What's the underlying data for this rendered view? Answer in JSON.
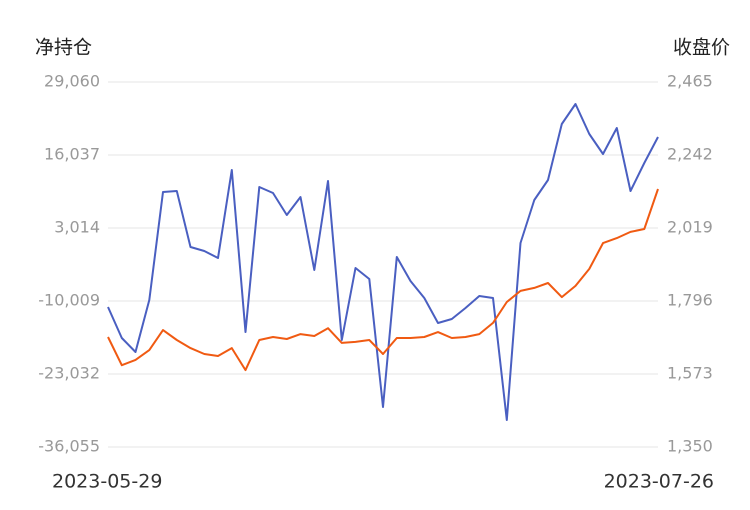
{
  "chart_data": {
    "type": "line",
    "y_label": "净持仓",
    "y2_label": "收盘价",
    "categories": [
      "2023-05-29",
      null,
      null,
      null,
      null,
      null,
      null,
      null,
      null,
      null,
      null,
      null,
      null,
      null,
      null,
      null,
      null,
      null,
      null,
      null,
      null,
      null,
      null,
      null,
      null,
      null,
      null,
      null,
      null,
      null,
      null,
      null,
      null,
      null,
      null,
      null,
      null,
      null,
      null,
      null,
      "2023-07-26"
    ],
    "ylim": [
      -36055,
      29060
    ],
    "yticks": [
      {
        "value": -36055,
        "label": "-36,055"
      },
      {
        "value": -23032,
        "label": "-23,032"
      },
      {
        "value": -10009,
        "label": "-10,009"
      },
      {
        "value": 3014,
        "label": "3,014"
      },
      {
        "value": 16037,
        "label": "16,037"
      },
      {
        "value": 29060,
        "label": "29,060"
      }
    ],
    "y2lim": [
      1350,
      2465
    ],
    "y2ticks": [
      {
        "value": 1350,
        "label": "1,350"
      },
      {
        "value": 1573,
        "label": "1,573"
      },
      {
        "value": 1796,
        "label": "1,796"
      },
      {
        "value": 2019,
        "label": "2,019"
      },
      {
        "value": 2242,
        "label": "2,242"
      },
      {
        "value": 2465,
        "label": "2,465"
      }
    ],
    "grid": true,
    "series": [
      {
        "color": "#4a5fc1",
        "values": [
          -11080,
          -16610,
          -19108,
          -9831,
          9436,
          9614,
          -377,
          -1090,
          -2338,
          13361,
          -15540,
          10328,
          9258,
          5333,
          8544,
          -4479,
          11398,
          -16967,
          -4122,
          -6084,
          -28920,
          -2160,
          -6442,
          -9475,
          -13934,
          -13221,
          -11258,
          -9118,
          -9475,
          -31239,
          336,
          8008,
          11576,
          21567,
          25135,
          19783,
          16216,
          20854,
          9614,
          14610,
          19248
        ]
      },
      {
        "color": "#f05a12",
        "axis": "y2",
        "values": [
          1686,
          1600,
          1616,
          1646,
          1707,
          1677,
          1652,
          1634,
          1628,
          1652,
          1585,
          1677,
          1686,
          1680,
          1695,
          1689,
          1713,
          1668,
          1671,
          1677,
          1634,
          1683,
          1683,
          1686,
          1701,
          1683,
          1686,
          1695,
          1729,
          1793,
          1827,
          1836,
          1851,
          1808,
          1842,
          1894,
          1973,
          1988,
          2007,
          2016,
          2138
        ]
      }
    ]
  }
}
